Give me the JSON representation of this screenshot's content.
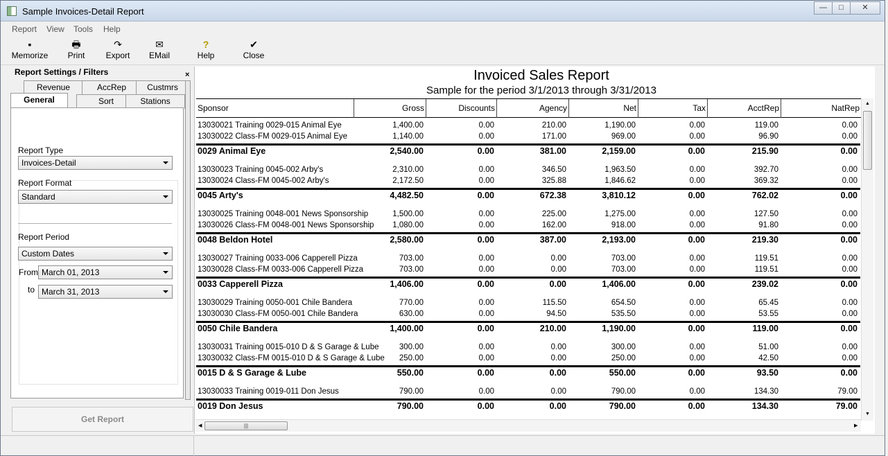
{
  "window": {
    "title": "Sample Invoices-Detail Report",
    "min": "—",
    "max": "□",
    "close": "✕"
  },
  "menu": [
    "Report",
    "View",
    "Tools",
    "Help"
  ],
  "toolbar": [
    {
      "label": "Memorize",
      "icon": "floppy-disk-icon",
      "glyph": "▪"
    },
    {
      "label": "Print",
      "icon": "printer-icon",
      "glyph": "🖶"
    },
    {
      "label": "Export",
      "icon": "export-arrow-icon",
      "glyph": "↷"
    },
    {
      "label": "EMail",
      "icon": "email-icon",
      "glyph": "✉"
    },
    {
      "label": "Help",
      "icon": "lightbulb-icon",
      "glyph": "?"
    },
    {
      "label": "Close",
      "icon": "checkmark-icon",
      "glyph": "✔"
    }
  ],
  "settings": {
    "title": "Report Settings / Filters",
    "close": "×",
    "tabs_row1": [
      "Revenue",
      "AccRep",
      "Custmrs"
    ],
    "tabs_row2": [
      "General",
      "Sort",
      "Stations"
    ],
    "report_type_label": "Report Type",
    "report_type_value": "Invoices-Detail",
    "report_format_label": "Report Format",
    "report_format_value": "Standard",
    "report_period_label": "Report Period",
    "report_period_value": "Custom Dates",
    "from_label": "From",
    "from_value": "March 01, 2013",
    "to_label": "to",
    "to_value": "March 31, 2013",
    "get_report": "Get Report"
  },
  "report": {
    "title": "Invoiced Sales Report",
    "subtitle": "Sample  for the period 3/1/2013 through 3/31/2013",
    "columns": [
      "Sponsor",
      "Gross",
      "Discounts",
      "Agency",
      "Net",
      "Tax",
      "AcctRep",
      "NatRep"
    ],
    "groups": [
      {
        "rows": [
          [
            "13030021 Training 0029-015 Animal Eye",
            "1,400.00",
            "0.00",
            "210.00",
            "1,190.00",
            "0.00",
            "119.00",
            "0.00"
          ],
          [
            "13030022 Class-FM 0029-015 Animal Eye",
            "1,140.00",
            "0.00",
            "171.00",
            "969.00",
            "0.00",
            "96.90",
            "0.00"
          ]
        ],
        "total": [
          "0029 Animal Eye",
          "2,540.00",
          "0.00",
          "381.00",
          "2,159.00",
          "0.00",
          "215.90",
          "0.00"
        ]
      },
      {
        "rows": [
          [
            "13030023 Training 0045-002 Arby's",
            "2,310.00",
            "0.00",
            "346.50",
            "1,963.50",
            "0.00",
            "392.70",
            "0.00"
          ],
          [
            "13030024 Class-FM 0045-002 Arby's",
            "2,172.50",
            "0.00",
            "325.88",
            "1,846.62",
            "0.00",
            "369.32",
            "0.00"
          ]
        ],
        "total": [
          "0045 Arty's",
          "4,482.50",
          "0.00",
          "672.38",
          "3,810.12",
          "0.00",
          "762.02",
          "0.00"
        ]
      },
      {
        "rows": [
          [
            "13030025 Training 0048-001 News Sponsorship",
            "1,500.00",
            "0.00",
            "225.00",
            "1,275.00",
            "0.00",
            "127.50",
            "0.00"
          ],
          [
            "13030026 Class-FM 0048-001 News Sponsorship",
            "1,080.00",
            "0.00",
            "162.00",
            "918.00",
            "0.00",
            "91.80",
            "0.00"
          ]
        ],
        "total": [
          "0048 Beldon Hotel",
          "2,580.00",
          "0.00",
          "387.00",
          "2,193.00",
          "0.00",
          "219.30",
          "0.00"
        ]
      },
      {
        "rows": [
          [
            "13030027 Training 0033-006 Capperell Pizza",
            "703.00",
            "0.00",
            "0.00",
            "703.00",
            "0.00",
            "119.51",
            "0.00"
          ],
          [
            "13030028 Class-FM 0033-006 Capperell Pizza",
            "703.00",
            "0.00",
            "0.00",
            "703.00",
            "0.00",
            "119.51",
            "0.00"
          ]
        ],
        "total": [
          "0033 Capperell Pizza",
          "1,406.00",
          "0.00",
          "0.00",
          "1,406.00",
          "0.00",
          "239.02",
          "0.00"
        ]
      },
      {
        "rows": [
          [
            "13030029 Training 0050-001 Chile Bandera",
            "770.00",
            "0.00",
            "115.50",
            "654.50",
            "0.00",
            "65.45",
            "0.00"
          ],
          [
            "13030030 Class-FM 0050-001 Chile Bandera",
            "630.00",
            "0.00",
            "94.50",
            "535.50",
            "0.00",
            "53.55",
            "0.00"
          ]
        ],
        "total": [
          "0050 Chile Bandera",
          "1,400.00",
          "0.00",
          "210.00",
          "1,190.00",
          "0.00",
          "119.00",
          "0.00"
        ]
      },
      {
        "rows": [
          [
            "13030031 Training 0015-010 D & S Garage & Lube",
            "300.00",
            "0.00",
            "0.00",
            "300.00",
            "0.00",
            "51.00",
            "0.00"
          ],
          [
            "13030032 Class-FM 0015-010 D & S Garage & Lube",
            "250.00",
            "0.00",
            "0.00",
            "250.00",
            "0.00",
            "42.50",
            "0.00"
          ]
        ],
        "total": [
          "0015 D & S Garage & Lube",
          "550.00",
          "0.00",
          "0.00",
          "550.00",
          "0.00",
          "93.50",
          "0.00"
        ]
      },
      {
        "rows": [
          [
            "13030033 Training 0019-011 Don Jesus",
            "790.00",
            "0.00",
            "0.00",
            "790.00",
            "0.00",
            "134.30",
            "79.00"
          ]
        ],
        "total": [
          "0019 Don Jesus",
          "790.00",
          "0.00",
          "0.00",
          "790.00",
          "0.00",
          "134.30",
          "79.00"
        ]
      }
    ]
  }
}
